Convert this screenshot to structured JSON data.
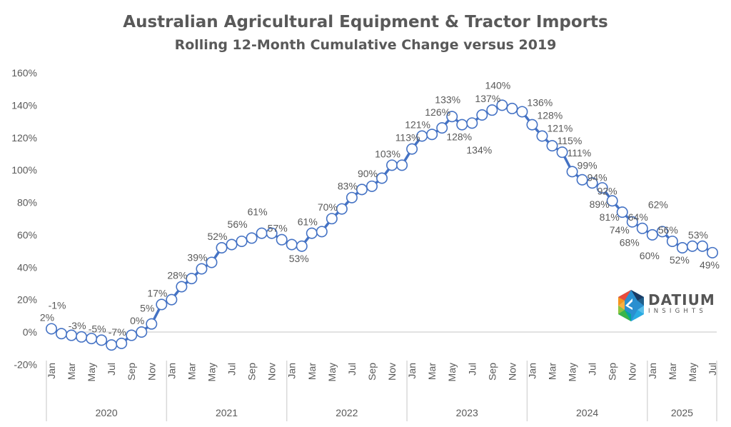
{
  "title": "Australian Agricultural Equipment & Tractor Imports",
  "subtitle": "Rolling 12-Month Cumulative Change versus 2019",
  "logo": {
    "main": "DATIUM",
    "sub": "INSIGHTS"
  },
  "colors": {
    "series": "#4472C4",
    "text": "#595959",
    "axis": "#D9D9D9"
  },
  "chart_data": {
    "type": "line",
    "title": "Australian Agricultural Equipment & Tractor Imports",
    "subtitle": "Rolling 12-Month Cumulative Change versus 2019",
    "xlabel": "",
    "ylabel": "",
    "ylim": [
      -20,
      160
    ],
    "yticks": [
      -20,
      0,
      20,
      40,
      60,
      80,
      100,
      120,
      140,
      160
    ],
    "ytick_labels": [
      "-20%",
      "0%",
      "20%",
      "40%",
      "60%",
      "80%",
      "100%",
      "120%",
      "140%",
      "160%"
    ],
    "month_tick_labels": [
      "Jan",
      "Mar",
      "May",
      "Jul",
      "Sep",
      "Nov"
    ],
    "years": [
      "2020",
      "2021",
      "2022",
      "2023",
      "2024",
      "2025"
    ],
    "x_start": "Jan 2020",
    "x_end": "Jul 2025",
    "series": [
      {
        "name": "Rolling 12-month cumulative change vs 2019 (%)",
        "values": [
          2,
          -1,
          -2,
          -3,
          -4,
          -5,
          -8,
          -7,
          -2,
          0,
          5,
          17,
          20,
          28,
          33,
          39,
          43,
          52,
          54,
          56,
          58,
          61,
          61,
          57,
          54,
          53,
          61,
          62,
          70,
          76,
          83,
          88,
          90,
          95,
          103,
          103,
          113,
          121,
          122,
          126,
          133,
          128,
          129,
          134,
          137,
          140,
          138,
          136,
          128,
          121,
          115,
          111,
          99,
          94,
          92,
          89,
          81,
          74,
          68,
          64,
          60,
          62,
          56,
          52,
          53,
          53,
          49
        ]
      }
    ],
    "data_labels": [
      {
        "i": 0,
        "text": "2%",
        "pos": "above"
      },
      {
        "i": 1,
        "text": "-1%",
        "pos": "above"
      },
      {
        "i": 3,
        "text": "-3%",
        "pos": "above"
      },
      {
        "i": 5,
        "text": "-5%",
        "pos": "above"
      },
      {
        "i": 7,
        "text": "-7%",
        "pos": "above"
      },
      {
        "i": 9,
        "text": "0%",
        "pos": "above"
      },
      {
        "i": 10,
        "text": "5%",
        "pos": "above"
      },
      {
        "i": 11,
        "text": "17%",
        "pos": "above"
      },
      {
        "i": 13,
        "text": "28%",
        "pos": "above"
      },
      {
        "i": 15,
        "text": "39%",
        "pos": "above"
      },
      {
        "i": 17,
        "text": "52%",
        "pos": "above"
      },
      {
        "i": 19,
        "text": "56%",
        "pos": "above"
      },
      {
        "i": 21,
        "text": "61%",
        "pos": "above"
      },
      {
        "i": 23,
        "text": "57%",
        "pos": "above"
      },
      {
        "i": 25,
        "text": "53%",
        "pos": "below"
      },
      {
        "i": 26,
        "text": "61%",
        "pos": "above"
      },
      {
        "i": 28,
        "text": "70%",
        "pos": "above"
      },
      {
        "i": 30,
        "text": "83%",
        "pos": "above"
      },
      {
        "i": 32,
        "text": "90%",
        "pos": "above"
      },
      {
        "i": 34,
        "text": "103%",
        "pos": "above"
      },
      {
        "i": 36,
        "text": "113%",
        "pos": "above"
      },
      {
        "i": 37,
        "text": "121%",
        "pos": "above"
      },
      {
        "i": 39,
        "text": "126%",
        "pos": "above"
      },
      {
        "i": 40,
        "text": "133%",
        "pos": "above"
      },
      {
        "i": 41,
        "text": "128%",
        "pos": "below"
      },
      {
        "i": 43,
        "text": "134%",
        "pos": "below"
      },
      {
        "i": 44,
        "text": "137%",
        "pos": "above"
      },
      {
        "i": 45,
        "text": "140%",
        "pos": "above"
      },
      {
        "i": 47,
        "text": "136%",
        "pos": "right"
      },
      {
        "i": 48,
        "text": "128%",
        "pos": "right"
      },
      {
        "i": 49,
        "text": "121%",
        "pos": "right"
      },
      {
        "i": 50,
        "text": "115%",
        "pos": "right"
      },
      {
        "i": 51,
        "text": "111%",
        "pos": "right"
      },
      {
        "i": 52,
        "text": "99%",
        "pos": "right"
      },
      {
        "i": 53,
        "text": "94%",
        "pos": "right"
      },
      {
        "i": 54,
        "text": "92%",
        "pos": "right"
      },
      {
        "i": 55,
        "text": "89%",
        "pos": "below"
      },
      {
        "i": 56,
        "text": "81%",
        "pos": "below"
      },
      {
        "i": 57,
        "text": "74%",
        "pos": "below"
      },
      {
        "i": 58,
        "text": "68%",
        "pos": "below"
      },
      {
        "i": 59,
        "text": "64%",
        "pos": "above"
      },
      {
        "i": 60,
        "text": "60%",
        "pos": "below"
      },
      {
        "i": 61,
        "text": "62%",
        "pos": "above"
      },
      {
        "i": 62,
        "text": "56%",
        "pos": "above"
      },
      {
        "i": 63,
        "text": "52%",
        "pos": "below"
      },
      {
        "i": 65,
        "text": "53%",
        "pos": "above"
      },
      {
        "i": 66,
        "text": "49%",
        "pos": "below"
      }
    ],
    "grid": false,
    "legend": "none"
  }
}
